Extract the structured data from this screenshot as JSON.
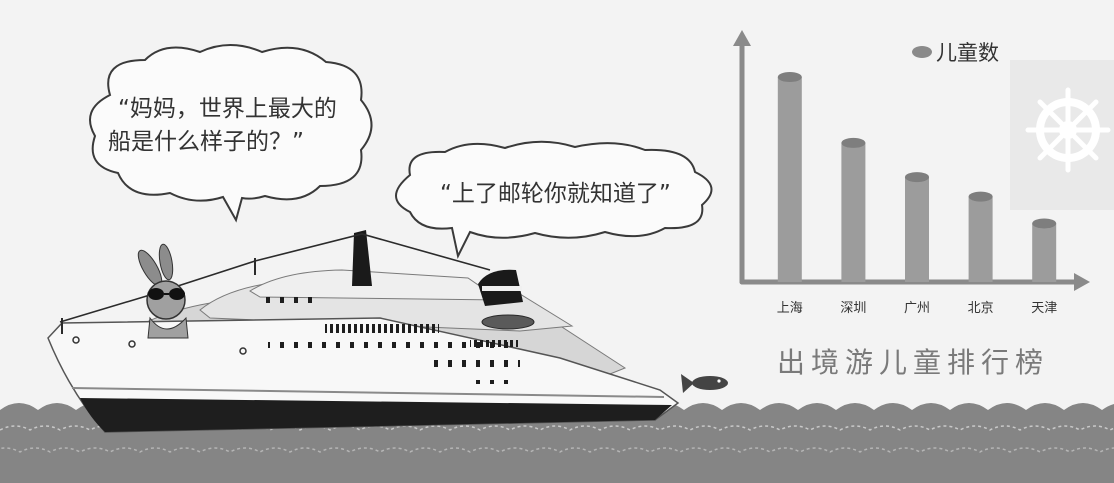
{
  "bubbles": {
    "question": {
      "lines": [
        "“妈妈，世界上最大的",
        "船是什么样子的？”"
      ]
    },
    "answer": {
      "text": "“上了邮轮你就知道了”"
    }
  },
  "chart_data": {
    "type": "bar",
    "title": "出境游儿童排行榜",
    "categories": [
      "上海",
      "深圳",
      "广州",
      "北京",
      "天津"
    ],
    "series": [
      {
        "name": "儿童数",
        "values": [
          84,
          57,
          43,
          35,
          24
        ]
      }
    ],
    "xlabel": "",
    "ylabel": "",
    "ylim": [
      0,
      100
    ],
    "grid": false,
    "legend_position": "top-right"
  },
  "colors": {
    "bar": "#9c9c9c",
    "bar_top": "#7e7e7e",
    "axis": "#8a8a8a",
    "sea": "#858585",
    "title": "#7a7a7a"
  },
  "icons": [
    "ship-wheel-icon",
    "fish-icon",
    "cruise-ship-illustration",
    "rabbit-character"
  ]
}
